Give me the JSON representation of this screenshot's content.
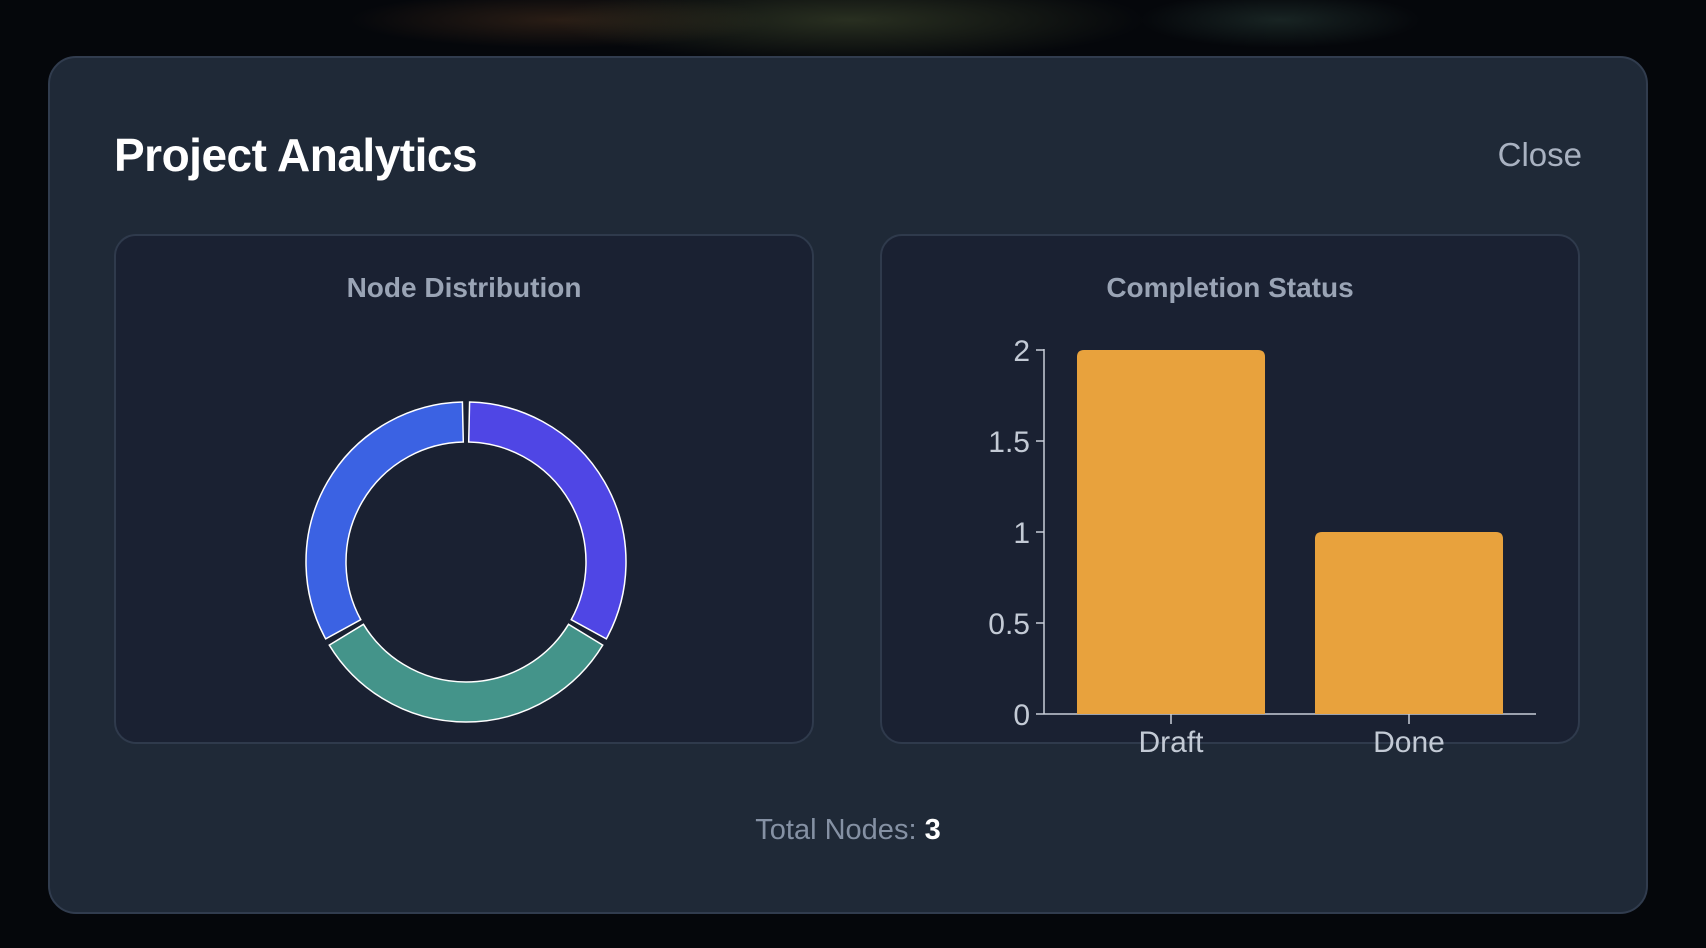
{
  "modal": {
    "title": "Project Analytics",
    "close_label": "Close"
  },
  "node_distribution": {
    "title": "Node Distribution"
  },
  "completion_status": {
    "title": "Completion Status"
  },
  "footer": {
    "total_label": "Total Nodes:",
    "total_value": "3"
  },
  "chart_data": [
    {
      "type": "pie",
      "variant": "donut",
      "title": "Node Distribution",
      "values": [
        1,
        1,
        1
      ],
      "colors": [
        "#4f46e5",
        "#44948a",
        "#3b62e3"
      ],
      "stroke": "#ffffff"
    },
    {
      "type": "bar",
      "title": "Completion Status",
      "categories": [
        "Draft",
        "Done"
      ],
      "values": [
        2,
        1
      ],
      "ylim": [
        0,
        2
      ],
      "yticks": [
        0,
        0.5,
        1,
        1.5,
        2
      ],
      "ytick_labels": [
        "0",
        "0.5",
        "1",
        "1.5",
        "2"
      ],
      "color": "#e8a23d",
      "xlabel": "",
      "ylabel": ""
    }
  ]
}
